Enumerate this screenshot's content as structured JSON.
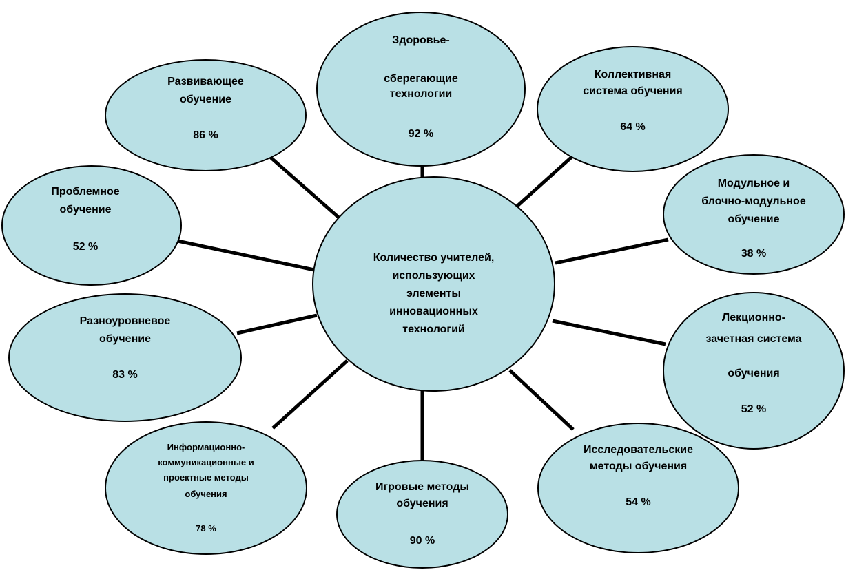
{
  "colors": {
    "fill": "#b9e0e5",
    "stroke": "#000000"
  },
  "center": {
    "lines": [
      "Количество учителей,",
      "использующих",
      "элементы",
      "инновационных",
      "технологий"
    ]
  },
  "nodes": {
    "zdorov": {
      "line1": "Здоровье-",
      "line2": "сберегающие",
      "line3": "технологии",
      "value": "92 %"
    },
    "razviv": {
      "line1": "Развивающее",
      "line2": "обучение",
      "value": "86 %"
    },
    "kollekt": {
      "line1": "Коллективная",
      "line2": "система обучения",
      "value": "64 %"
    },
    "problem": {
      "line1": "Проблемное",
      "line2": "обучение",
      "value": "52 %"
    },
    "modul": {
      "line1": "Модульное и",
      "line2": "блочно-модульное",
      "line3": "обучение",
      "value": "38 %"
    },
    "raznour": {
      "line1": "Разноуровневое",
      "line2": "обучение",
      "value": "83 %"
    },
    "lekts": {
      "line1": "Лекционно-",
      "line2": "зачетная система",
      "line3": "обучения",
      "value": "52 %"
    },
    "inform": {
      "line1": "Информационно-",
      "line2": "коммуникационные и",
      "line3": "проектные методы",
      "line4": "обучения",
      "value": "78 %"
    },
    "igrov": {
      "line1": "Игровые методы",
      "line2": "обучения",
      "value": "90 %"
    },
    "issled": {
      "line1": "Исследовательские",
      "line2": "методы  обучения",
      "value": "54 %"
    }
  }
}
